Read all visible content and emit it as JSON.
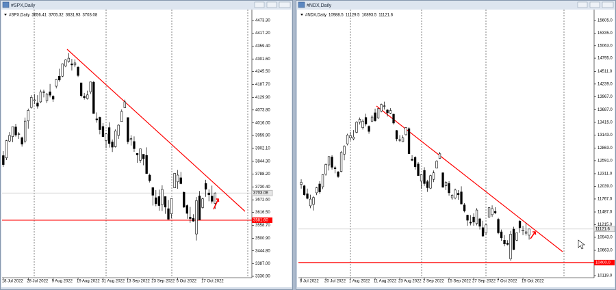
{
  "chart_data": [
    {
      "type": "candlestick",
      "title": "#SPX,Daily",
      "ohlc": [
        [
          3870,
          3890,
          3820,
          3830
        ],
        [
          3860,
          3940,
          3850,
          3937
        ],
        [
          3935,
          3975,
          3930,
          3960
        ],
        [
          3955,
          4000,
          3930,
          3999
        ],
        [
          3998,
          4012,
          3955,
          3962
        ],
        [
          3965,
          3975,
          3945,
          3967
        ],
        [
          3950,
          3955,
          3910,
          3921
        ],
        [
          3935,
          4040,
          3925,
          4024
        ],
        [
          4025,
          4080,
          3990,
          4072
        ],
        [
          4085,
          4140,
          4080,
          4130
        ],
        [
          4115,
          4145,
          4100,
          4119
        ],
        [
          4105,
          4140,
          4080,
          4091
        ],
        [
          4110,
          4165,
          4105,
          4155
        ],
        [
          4155,
          4165,
          4130,
          4152
        ],
        [
          4115,
          4150,
          4105,
          4145
        ],
        [
          4155,
          4190,
          4130,
          4140
        ],
        [
          4135,
          4140,
          4110,
          4122
        ],
        [
          4180,
          4212,
          4170,
          4210
        ],
        [
          4225,
          4258,
          4200,
          4208
        ],
        [
          4225,
          4282,
          4220,
          4280
        ],
        [
          4270,
          4300,
          4265,
          4297
        ],
        [
          4290,
          4328,
          4285,
          4305
        ],
        [
          4280,
          4302,
          4250,
          4275
        ],
        [
          4275,
          4300,
          4265,
          4284
        ],
        [
          4265,
          4270,
          4220,
          4228
        ],
        [
          4195,
          4195,
          4130,
          4138
        ],
        [
          4135,
          4150,
          4120,
          4129
        ],
        [
          4125,
          4160,
          4120,
          4141
        ],
        [
          4155,
          4200,
          4145,
          4199
        ],
        [
          4198,
          4203,
          4057,
          4058
        ],
        [
          4034,
          4063,
          4017,
          4030
        ],
        [
          4041,
          4044,
          3965,
          3986
        ],
        [
          4000,
          4015,
          3955,
          3955
        ],
        [
          3937,
          3970,
          3903,
          3967
        ],
        [
          3995,
          4019,
          3906,
          3924
        ],
        [
          3931,
          3942,
          3886,
          3908
        ],
        [
          3910,
          3987,
          3906,
          3980
        ],
        [
          3960,
          4010,
          3945,
          4006
        ],
        [
          4022,
          4076,
          4022,
          4067
        ],
        [
          4084,
          4120,
          4083,
          4110
        ],
        [
          4040,
          4040,
          3921,
          3932
        ],
        [
          3940,
          3961,
          3915,
          3946
        ],
        [
          3933,
          3956,
          3887,
          3901
        ],
        [
          3880,
          3881,
          3838,
          3873
        ],
        [
          3849,
          3900,
          3838,
          3900
        ],
        [
          3876,
          3876,
          3827,
          3856
        ],
        [
          3871,
          3907,
          3789,
          3790
        ],
        [
          3783,
          3790,
          3750,
          3758
        ],
        [
          3727,
          3727,
          3647,
          3693
        ],
        [
          3682,
          3716,
          3644,
          3655
        ],
        [
          3687,
          3718,
          3624,
          3647
        ],
        [
          3651,
          3737,
          3623,
          3719
        ],
        [
          3687,
          3687,
          3610,
          3640
        ],
        [
          3633,
          3672,
          3584,
          3586
        ],
        [
          3610,
          3679,
          3590,
          3678
        ],
        [
          3726,
          3793,
          3726,
          3791
        ],
        [
          3753,
          3806,
          3722,
          3783
        ],
        [
          3771,
          3797,
          3742,
          3745
        ],
        [
          3706,
          3710,
          3636,
          3640
        ],
        [
          3647,
          3652,
          3588,
          3612
        ],
        [
          3595,
          3641,
          3570,
          3589
        ],
        [
          3590,
          3608,
          3575,
          3577
        ],
        [
          3520,
          3685,
          3491,
          3669
        ],
        [
          3690,
          3712,
          3582,
          3583
        ],
        [
          3638,
          3682,
          3632,
          3677
        ],
        [
          3746,
          3762,
          3686,
          3720
        ],
        [
          3703,
          3719,
          3666,
          3695
        ],
        [
          3689,
          3736,
          3656,
          3666
        ],
        [
          3656.41,
          3705.32,
          3631.93,
          3703.08
        ]
      ],
      "xlim": [
        -0.4,
        79.8
      ],
      "xticks": [
        {
          "value": 0,
          "label": "18 Jul 2022"
        },
        {
          "value": 8,
          "label": "28 Jul 2022"
        },
        {
          "value": 16,
          "label": "9 Aug 2022"
        },
        {
          "value": 24,
          "label": "19 Aug 2022"
        },
        {
          "value": 32,
          "label": "31 Aug 2022"
        },
        {
          "value": 40,
          "label": "13 Sep 2022"
        },
        {
          "value": 48,
          "label": "23 Sep 2022"
        },
        {
          "value": 56,
          "label": "5 Oct 2022"
        },
        {
          "value": 64,
          "label": "17 Oct 2022"
        }
      ],
      "ylim": [
        3324.8,
        4522.2
      ],
      "yticks": [
        {
          "value": 4473.3,
          "label": "4473.30"
        },
        {
          "value": 4417.2,
          "label": "4417.20"
        },
        {
          "value": 4359.4,
          "label": "4359.40"
        },
        {
          "value": 4301.6,
          "label": "4301.60"
        },
        {
          "value": 4245.5,
          "label": "4245.50"
        },
        {
          "value": 4187.7,
          "label": "4187.70"
        },
        {
          "value": 4129.9,
          "label": "4129.90"
        },
        {
          "value": 4073.8,
          "label": "4073.80"
        },
        {
          "value": 4016,
          "label": "4016.00"
        },
        {
          "value": 3959.9,
          "label": "3959.90"
        },
        {
          "value": 3902.1,
          "label": "3902.10"
        },
        {
          "value": 3844.3,
          "label": "3844.30"
        },
        {
          "value": 3788.2,
          "label": "3788.20"
        },
        {
          "value": 3730.4,
          "label": "3730.40"
        },
        {
          "value": 3672.6,
          "label": "3672.60"
        },
        {
          "value": 3616.5,
          "label": "3616.50"
        },
        {
          "value": 3558.7,
          "label": "3558.70"
        },
        {
          "value": 3500.9,
          "label": "3500.90"
        },
        {
          "value": 3444.8,
          "label": "3444.80"
        },
        {
          "value": 3387,
          "label": "3387.00"
        },
        {
          "value": 3330.9,
          "label": "3330.90"
        }
      ],
      "support": {
        "value": 3581.6,
        "label": "3581.60"
      },
      "up_color": "#ffffff",
      "down_color": "#000000",
      "line_color": "#ff0000"
    },
    {
      "type": "candlestick",
      "title": "#NDX,Daily",
      "ohlc": [
        [
          12080,
          12190,
          11990,
          12126
        ],
        [
          12050,
          12070,
          11840,
          11860
        ],
        [
          11880,
          11990,
          11760,
          11780
        ],
        [
          11620,
          11860,
          11570,
          11765
        ],
        [
          11650,
          11830,
          11520,
          11800
        ],
        [
          11900,
          12030,
          11850,
          12010
        ],
        [
          12090,
          12150,
          11880,
          11920
        ],
        [
          12030,
          12300,
          11980,
          12290
        ],
        [
          12300,
          12530,
          12270,
          12510
        ],
        [
          12500,
          12690,
          12380,
          12680
        ],
        [
          12670,
          12710,
          12400,
          12450
        ],
        [
          12440,
          12480,
          12320,
          12420
        ],
        [
          12350,
          12370,
          12220,
          12250
        ],
        [
          12360,
          12800,
          12340,
          12770
        ],
        [
          12730,
          12920,
          12600,
          12900
        ],
        [
          12950,
          13170,
          12920,
          13140
        ],
        [
          13080,
          13210,
          13020,
          13130
        ],
        [
          13060,
          13250,
          13030,
          13100
        ],
        [
          13200,
          13440,
          13180,
          13420
        ],
        [
          13420,
          13520,
          13370,
          13480
        ],
        [
          13300,
          13480,
          13260,
          13440
        ],
        [
          13520,
          13600,
          13330,
          13380
        ],
        [
          13330,
          13350,
          13170,
          13220
        ],
        [
          13440,
          13570,
          13420,
          13530
        ],
        [
          13620,
          13710,
          13430,
          13450
        ],
        [
          13510,
          13720,
          13490,
          13710
        ],
        [
          13660,
          13820,
          13630,
          13800
        ],
        [
          13760,
          13860,
          13690,
          13770
        ],
        [
          13680,
          13700,
          13540,
          13620
        ],
        [
          13610,
          13720,
          13590,
          13670
        ],
        [
          13590,
          13600,
          13370,
          13400
        ],
        [
          13240,
          13250,
          13010,
          13060
        ],
        [
          13040,
          13140,
          12990,
          13030
        ],
        [
          13000,
          13140,
          12990,
          13080
        ],
        [
          13150,
          13310,
          13130,
          13300
        ],
        [
          13280,
          13310,
          12740,
          12740
        ],
        [
          12620,
          12710,
          12580,
          12600
        ],
        [
          12660,
          12690,
          12400,
          12460
        ],
        [
          12520,
          12560,
          12270,
          12270
        ],
        [
          12150,
          12300,
          11990,
          12290
        ],
        [
          12380,
          12450,
          12050,
          12100
        ],
        [
          12140,
          12180,
          11920,
          12010
        ],
        [
          12000,
          12290,
          11980,
          12270
        ],
        [
          12190,
          12380,
          12130,
          12330
        ],
        [
          12430,
          12600,
          12430,
          12580
        ],
        [
          12640,
          12780,
          12630,
          12740
        ],
        [
          12330,
          12340,
          12010,
          12020
        ],
        [
          12050,
          12150,
          11960,
          12130
        ],
        [
          12100,
          12150,
          11840,
          11900
        ],
        [
          11790,
          11870,
          11750,
          11850
        ],
        [
          11790,
          11990,
          11760,
          11960
        ],
        [
          11890,
          11960,
          11750,
          11860
        ],
        [
          11920,
          12040,
          11650,
          11660
        ],
        [
          11640,
          11680,
          11480,
          11510
        ],
        [
          11420,
          11430,
          11190,
          11310
        ],
        [
          11270,
          11420,
          11200,
          11250
        ],
        [
          11380,
          11460,
          11190,
          11270
        ],
        [
          11240,
          11570,
          11200,
          11530
        ],
        [
          11340,
          11360,
          11110,
          11180
        ],
        [
          11150,
          11300,
          10960,
          10970
        ],
        [
          11040,
          11230,
          10990,
          11210
        ],
        [
          11380,
          11590,
          11370,
          11580
        ],
        [
          11430,
          11630,
          11380,
          11560
        ],
        [
          11500,
          11590,
          11440,
          11470
        ],
        [
          11330,
          11360,
          11010,
          11040
        ],
        [
          11060,
          11110,
          10870,
          10930
        ],
        [
          10880,
          10990,
          10750,
          10800
        ],
        [
          10820,
          10880,
          10770,
          10790
        ],
        [
          10480,
          11080,
          10440,
          11010
        ],
        [
          11120,
          11170,
          10670,
          10680
        ],
        [
          10880,
          11050,
          10860,
          11040
        ],
        [
          11290,
          11310,
          11040,
          11150
        ],
        [
          11080,
          11190,
          10990,
          11100
        ],
        [
          11030,
          11250,
          10980,
          11060
        ],
        [
          10988.5,
          11129.5,
          10893.5,
          11121.6
        ]
      ],
      "xlim": [
        -0.9,
        95.1
      ],
      "xticks": [
        {
          "value": 0,
          "label": "8 Jul 2022"
        },
        {
          "value": 8,
          "label": "20 Jul 2022"
        },
        {
          "value": 16,
          "label": "1 Aug 2022"
        },
        {
          "value": 24,
          "label": "11 Aug 2022"
        },
        {
          "value": 32,
          "label": "23 Aug 2022"
        },
        {
          "value": 40,
          "label": "2 Sep 2022"
        },
        {
          "value": 48,
          "label": "15 Sep 2022"
        },
        {
          "value": 56,
          "label": "27 Sep 2022"
        },
        {
          "value": 64,
          "label": "7 Oct 2022"
        },
        {
          "value": 72,
          "label": "19 Oct 2022"
        }
      ],
      "ylim": [
        10075,
        15840
      ],
      "yticks": [
        {
          "value": 15605,
          "label": "15605.0"
        },
        {
          "value": 15335,
          "label": "15335.0"
        },
        {
          "value": 15063,
          "label": "15063.0"
        },
        {
          "value": 14795,
          "label": "14795.0"
        },
        {
          "value": 14511,
          "label": "14511.0"
        },
        {
          "value": 14239,
          "label": "14239.0"
        },
        {
          "value": 13967,
          "label": "13967.0"
        },
        {
          "value": 13687,
          "label": "13687.0"
        },
        {
          "value": 13415,
          "label": "13415.0"
        },
        {
          "value": 13143,
          "label": "13143.0"
        },
        {
          "value": 12863,
          "label": "12863.0"
        },
        {
          "value": 12591,
          "label": "12591.0"
        },
        {
          "value": 12311,
          "label": "12311.0"
        },
        {
          "value": 12039,
          "label": "12039.0"
        },
        {
          "value": 11767,
          "label": "11767.0"
        },
        {
          "value": 11487,
          "label": "11487.0"
        },
        {
          "value": 11215,
          "label": "11215.0"
        },
        {
          "value": 10943,
          "label": "10943.0"
        },
        {
          "value": 10663,
          "label": "10663.0"
        },
        {
          "value": 10119,
          "label": "10119.0"
        }
      ],
      "support": {
        "value": 10400,
        "label": "10400.0"
      },
      "up_color": "#ffffff",
      "down_color": "#000000",
      "line_color": "#ff0000"
    }
  ]
}
